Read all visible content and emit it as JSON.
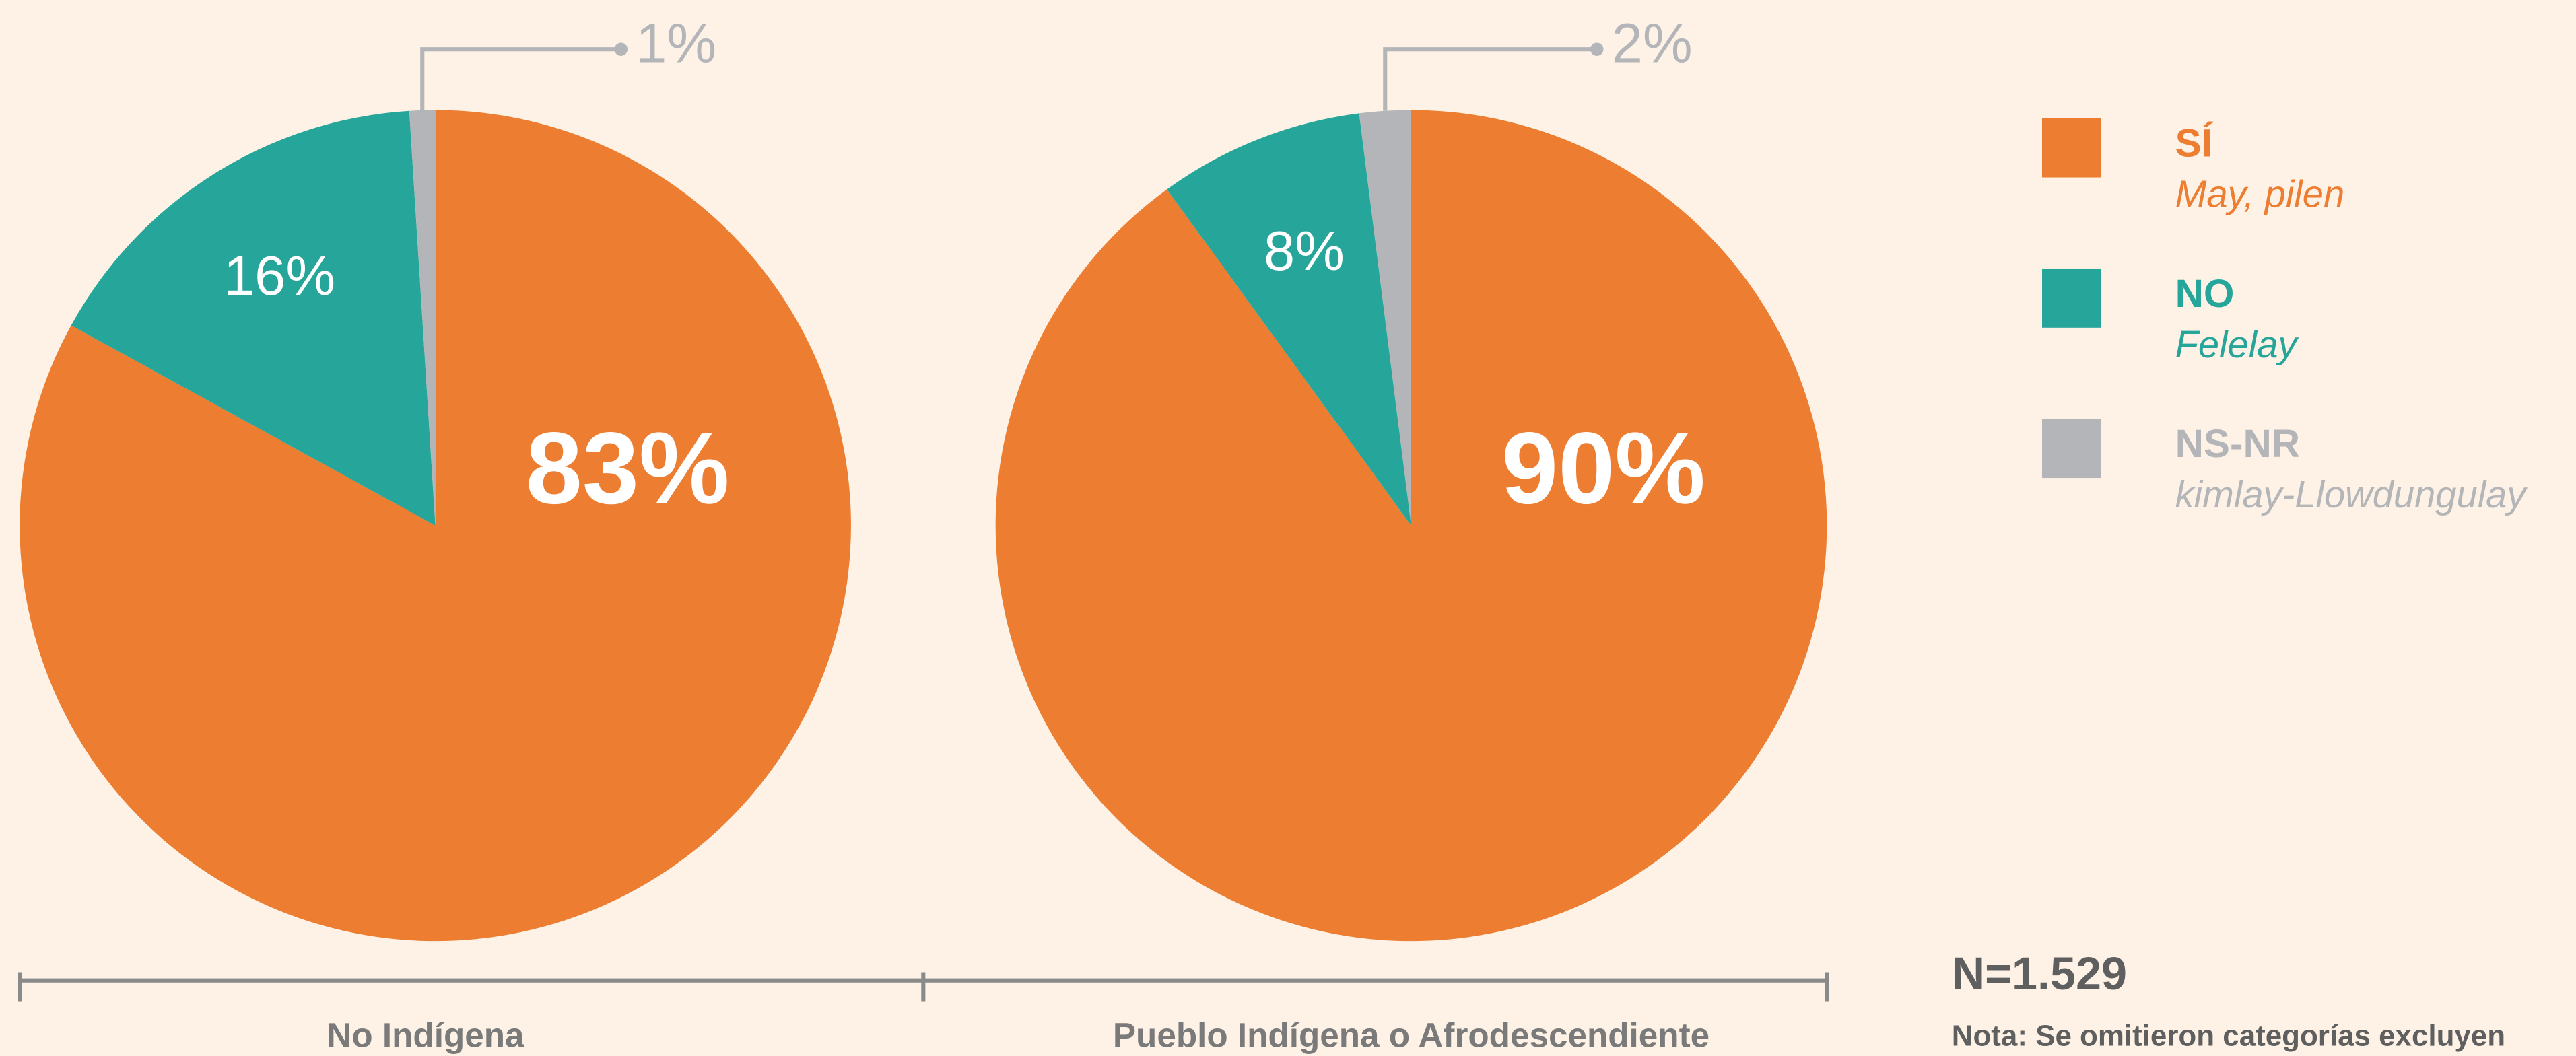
{
  "chart_data": [
    {
      "type": "pie",
      "title": "No Indígena",
      "values": [
        83,
        16,
        1
      ],
      "value_labels": [
        "83%",
        "16%",
        "1%"
      ]
    },
    {
      "type": "pie",
      "title": "Pueblo Indígena o Afrodescendiente",
      "values": [
        90,
        8,
        2
      ],
      "value_labels": [
        "90%",
        "8%",
        "2%"
      ]
    }
  ],
  "legend": [
    {
      "label": "SÍ",
      "sublabel": "May, pilen",
      "color": "#ed7d31"
    },
    {
      "label": "NO",
      "sublabel": "Felelay",
      "color": "#26a59a"
    },
    {
      "label": "NS-NR",
      "sublabel": "kimlay-Llowdungulay",
      "color": "#b4b5b8"
    }
  ],
  "footer": {
    "n": "N=1.529",
    "note": "Nota: Se omitieron categorías excluyen"
  }
}
